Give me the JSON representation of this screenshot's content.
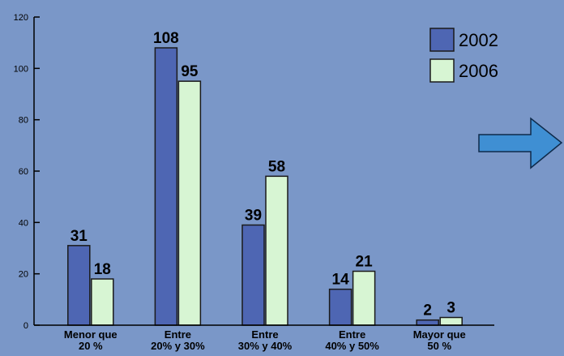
{
  "chart_data": {
    "type": "bar",
    "categories": [
      [
        "Menor que",
        "20 %"
      ],
      [
        "Entre",
        "20% y 30%"
      ],
      [
        "Entre",
        "30% y 40%"
      ],
      [
        "Entre",
        "40% y 50%"
      ],
      [
        "Mayor que",
        "50 %"
      ]
    ],
    "series": [
      {
        "name": "2002",
        "color": "#4e66b3",
        "values": [
          31,
          108,
          39,
          14,
          2
        ]
      },
      {
        "name": "2006",
        "color": "#d7f5d3",
        "values": [
          18,
          95,
          58,
          21,
          3
        ]
      }
    ],
    "ylim": [
      0,
      120
    ],
    "yticks": [
      0,
      20,
      40,
      60,
      80,
      100,
      120
    ],
    "legend_position": "top-right",
    "grid": false
  },
  "decoration": {
    "arrow_icon": "right-arrow-icon",
    "arrow_color": "#3f8fd3"
  }
}
